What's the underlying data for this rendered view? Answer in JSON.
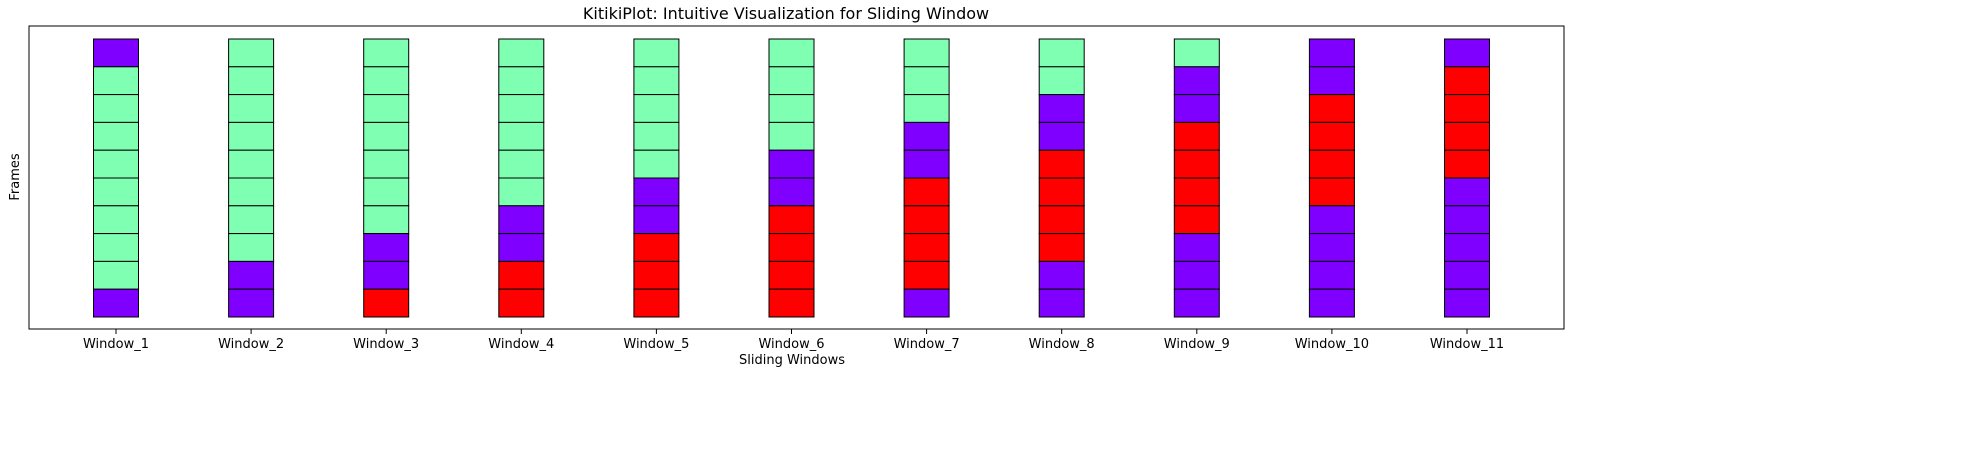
{
  "chart_data": {
    "type": "bar",
    "title": "KitikiPlot: Intuitive Visualization for Sliding Window",
    "xlabel": "Sliding Windows",
    "ylabel": "Frames",
    "categories": [
      "Window_1",
      "Window_2",
      "Window_3",
      "Window_4",
      "Window_5",
      "Window_6",
      "Window_7",
      "Window_8",
      "Window_9",
      "Window_10",
      "Window_11"
    ],
    "cells_per_window": 10,
    "color_map": {
      "A": "#7f00ff",
      "B": "#7fffb2",
      "C": "#ff0000"
    },
    "windows": [
      [
        "A",
        "B",
        "B",
        "B",
        "B",
        "B",
        "B",
        "B",
        "B",
        "A"
      ],
      [
        "B",
        "B",
        "B",
        "B",
        "B",
        "B",
        "B",
        "B",
        "A",
        "A"
      ],
      [
        "B",
        "B",
        "B",
        "B",
        "B",
        "B",
        "B",
        "A",
        "A",
        "C"
      ],
      [
        "B",
        "B",
        "B",
        "B",
        "B",
        "B",
        "A",
        "A",
        "C",
        "C"
      ],
      [
        "B",
        "B",
        "B",
        "B",
        "B",
        "A",
        "A",
        "C",
        "C",
        "C"
      ],
      [
        "B",
        "B",
        "B",
        "B",
        "A",
        "A",
        "C",
        "C",
        "C",
        "C"
      ],
      [
        "B",
        "B",
        "B",
        "A",
        "A",
        "C",
        "C",
        "C",
        "C",
        "A"
      ],
      [
        "B",
        "B",
        "A",
        "A",
        "C",
        "C",
        "C",
        "C",
        "A",
        "A"
      ],
      [
        "B",
        "A",
        "A",
        "C",
        "C",
        "C",
        "C",
        "A",
        "A",
        "A"
      ],
      [
        "A",
        "A",
        "C",
        "C",
        "C",
        "C",
        "A",
        "A",
        "A",
        "A"
      ],
      [
        "A",
        "C",
        "C",
        "C",
        "C",
        "A",
        "A",
        "A",
        "A",
        "A"
      ]
    ],
    "cell_edge_color": "#000000",
    "grid": false,
    "legend": "none"
  }
}
